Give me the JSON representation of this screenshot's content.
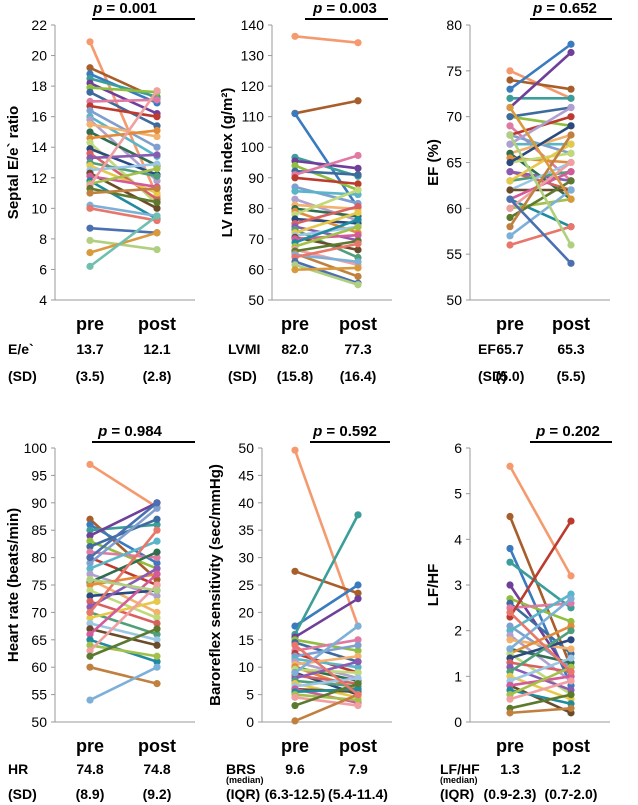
{
  "figure": {
    "description": "Six paired pre/post comparison plots"
  },
  "chart_data": [
    {
      "type": "line",
      "id": "ee",
      "ylabel": "Septal E/e` ratio",
      "ylim": [
        4,
        22
      ],
      "yticks": [
        4,
        6,
        8,
        10,
        12,
        14,
        16,
        18,
        20,
        22
      ],
      "p_value": "p = 0.001",
      "categories": [
        "pre",
        "post"
      ],
      "stats": [
        {
          "label": "E/e`",
          "sub": "",
          "pre": "13.7",
          "post": "12.1"
        },
        {
          "label": "(SD)",
          "sub": "",
          "pre": "(3.5)",
          "post": "(2.8)"
        }
      ],
      "pairs": [
        [
          20.9,
          10.8
        ],
        [
          19.2,
          17.2
        ],
        [
          18.8,
          16.9
        ],
        [
          18.5,
          17.3
        ],
        [
          18.2,
          16.2
        ],
        [
          17.9,
          17.6
        ],
        [
          17.6,
          15.4
        ],
        [
          17.0,
          17.1
        ],
        [
          16.7,
          16.0
        ],
        [
          16.4,
          14.0
        ],
        [
          16.0,
          13.4
        ],
        [
          15.8,
          11.8
        ],
        [
          15.5,
          14.7
        ],
        [
          15.0,
          12.8
        ],
        [
          14.6,
          15.1
        ],
        [
          14.3,
          10.3
        ],
        [
          13.9,
          12.2
        ],
        [
          13.6,
          10.6
        ],
        [
          13.3,
          13.5
        ],
        [
          13.0,
          12.1
        ],
        [
          12.8,
          11.0
        ],
        [
          12.5,
          12.9
        ],
        [
          12.3,
          10.0
        ],
        [
          12.1,
          11.4
        ],
        [
          11.8,
          9.3
        ],
        [
          11.6,
          12.6
        ],
        [
          11.5,
          17.7
        ],
        [
          11.3,
          10.4
        ],
        [
          11.0,
          11.3
        ],
        [
          10.2,
          9.5
        ],
        [
          10.0,
          9.2
        ],
        [
          8.7,
          8.4
        ],
        [
          7.9,
          7.3
        ],
        [
          7.1,
          8.4
        ],
        [
          6.2,
          9.5
        ]
      ]
    },
    {
      "type": "line",
      "id": "lvmi",
      "ylabel": "LV mass index (g/m²)",
      "ylim": [
        50,
        140
      ],
      "yticks": [
        50,
        60,
        70,
        80,
        90,
        100,
        110,
        120,
        130,
        140
      ],
      "p_value": "p = 0.003",
      "categories": [
        "pre",
        "post"
      ],
      "stats": [
        {
          "label": "LVMI",
          "sub": "",
          "pre": "82.0",
          "post": "77.3"
        },
        {
          "label": "(SD)",
          "sub": "",
          "pre": "(15.8)",
          "post": "(16.4)"
        }
      ],
      "pairs": [
        [
          136.3,
          134.2
        ],
        [
          111.1,
          115.2
        ],
        [
          111.0,
          80.2
        ],
        [
          96.7,
          90.5
        ],
        [
          95.5,
          93.1
        ],
        [
          94.0,
          86.0
        ],
        [
          92.2,
          91.0
        ],
        [
          91.0,
          97.3
        ],
        [
          90.0,
          88.0
        ],
        [
          87.0,
          81.6
        ],
        [
          85.6,
          84.5
        ],
        [
          83.0,
          76.0
        ],
        [
          81.1,
          79.8
        ],
        [
          79.9,
          77.4
        ],
        [
          79.0,
          72.0
        ],
        [
          78.0,
          86.0
        ],
        [
          76.5,
          75.1
        ],
        [
          75.0,
          80.6
        ],
        [
          74.0,
          69.5
        ],
        [
          73.0,
          63.9
        ],
        [
          72.0,
          78.6
        ],
        [
          71.0,
          74.0
        ],
        [
          70.5,
          66.4
        ],
        [
          70.0,
          71.2
        ],
        [
          68.8,
          76.3
        ],
        [
          67.5,
          73.9
        ],
        [
          66.5,
          61.5
        ],
        [
          66.0,
          69.3
        ],
        [
          65.2,
          57.7
        ],
        [
          64.8,
          62.5
        ],
        [
          64.0,
          68.4
        ],
        [
          62.6,
          55.5
        ],
        [
          61.5,
          55.0
        ],
        [
          59.9,
          60.5
        ]
      ]
    },
    {
      "type": "line",
      "id": "ef",
      "ylabel": "EF (%)",
      "ylim": [
        50,
        80
      ],
      "yticks": [
        50,
        55,
        60,
        65,
        70,
        75,
        80
      ],
      "p_value": "p = 0.652",
      "categories": [
        "pre",
        "post"
      ],
      "stats": [
        {
          "label": "EF",
          "sub": "",
          "pre": "65.7",
          "post": "65.3"
        },
        {
          "label": "(SD)",
          "sub": "",
          "pre": "(5.0)",
          "post": "(5.5)"
        }
      ],
      "pairs": [
        [
          75.0,
          72.0
        ],
        [
          74.0,
          73.0
        ],
        [
          73.0,
          77.9
        ],
        [
          72.0,
          72.0
        ],
        [
          71.0,
          77.0
        ],
        [
          70.0,
          69.0
        ],
        [
          70.0,
          71.0
        ],
        [
          69.0,
          63.0
        ],
        [
          68.0,
          70.0
        ],
        [
          68.0,
          66.0
        ],
        [
          67.0,
          67.0
        ],
        [
          67.0,
          71.0
        ],
        [
          66.0,
          68.0
        ],
        [
          66.0,
          61.0
        ],
        [
          65.5,
          65.0
        ],
        [
          65.0,
          66.0
        ],
        [
          65.0,
          69.0
        ],
        [
          64.0,
          62.0
        ],
        [
          64.0,
          63.0
        ],
        [
          63.0,
          64.0
        ],
        [
          63.0,
          67.0
        ],
        [
          62.0,
          65.0
        ],
        [
          62.0,
          62.0
        ],
        [
          61.0,
          64.0
        ],
        [
          61.0,
          58.0
        ],
        [
          60.0,
          61.0
        ],
        [
          60.0,
          65.0
        ],
        [
          59.0,
          63.0
        ],
        [
          58.0,
          68.0
        ],
        [
          57.0,
          62.0
        ],
        [
          56.0,
          58.0
        ],
        [
          61.0,
          54.0
        ],
        [
          68.0,
          56.0
        ],
        [
          71.0,
          61.0
        ]
      ]
    },
    {
      "type": "line",
      "id": "hr",
      "ylabel": "Heart rate (beats/min)",
      "ylim": [
        50,
        100
      ],
      "yticks": [
        50,
        55,
        60,
        65,
        70,
        75,
        80,
        85,
        90,
        95,
        100
      ],
      "p_value": "p = 0.984",
      "categories": [
        "pre",
        "post"
      ],
      "stats": [
        {
          "label": "HR",
          "sub": "",
          "pre": "74.8",
          "post": "74.8"
        },
        {
          "label": "(SD)",
          "sub": "",
          "pre": "(8.9)",
          "post": "(9.2)"
        }
      ],
      "pairs": [
        [
          97.0,
          89.2
        ],
        [
          87.0,
          76.0
        ],
        [
          86.0,
          79.0
        ],
        [
          85.0,
          86.0
        ],
        [
          84.0,
          90.0
        ],
        [
          83.0,
          78.0
        ],
        [
          82.0,
          87.0
        ],
        [
          81.0,
          80.0
        ],
        [
          80.0,
          75.0
        ],
        [
          79.0,
          89.0
        ],
        [
          78.0,
          83.0
        ],
        [
          77.0,
          73.0
        ],
        [
          76.0,
          70.0
        ],
        [
          75.5,
          81.0
        ],
        [
          75.0,
          77.0
        ],
        [
          74.0,
          69.0
        ],
        [
          73.0,
          74.0
        ],
        [
          72.0,
          68.0
        ],
        [
          71.0,
          78.0
        ],
        [
          70.0,
          66.0
        ],
        [
          69.0,
          72.0
        ],
        [
          68.0,
          65.0
        ],
        [
          67.0,
          64.0
        ],
        [
          66.0,
          77.0
        ],
        [
          65.0,
          61.0
        ],
        [
          64.0,
          62.0
        ],
        [
          63.0,
          75.0
        ],
        [
          62.0,
          67.0
        ],
        [
          60.0,
          57.0
        ],
        [
          54.0,
          60.0
        ],
        [
          70.0,
          85.0
        ],
        [
          80.0,
          90.0
        ],
        [
          76.0,
          74.0
        ]
      ]
    },
    {
      "type": "line",
      "id": "brs",
      "ylabel": "Baroreflex sensitivity (sec/mmHg)",
      "ylim": [
        0,
        50
      ],
      "yticks": [
        0,
        5,
        10,
        15,
        20,
        25,
        30,
        35,
        40,
        45,
        50
      ],
      "p_value": "p = 0.592",
      "categories": [
        "pre",
        "post"
      ],
      "stats": [
        {
          "label": "BRS",
          "sub": "(median)",
          "pre": "9.6",
          "post": "7.9"
        },
        {
          "label": "(IQR)",
          "sub": "",
          "pre": "(6.3-12.5)",
          "post": "(5.4-11.4)"
        }
      ],
      "pairs": [
        [
          49.6,
          17.5
        ],
        [
          27.5,
          23.5
        ],
        [
          17.5,
          25.0
        ],
        [
          16.0,
          37.8
        ],
        [
          15.5,
          22.5
        ],
        [
          15.0,
          13.0
        ],
        [
          14.5,
          11.0
        ],
        [
          13.0,
          15.0
        ],
        [
          12.5,
          9.0
        ],
        [
          12.0,
          14.0
        ],
        [
          11.5,
          10.0
        ],
        [
          11.0,
          8.0
        ],
        [
          10.5,
          12.0
        ],
        [
          10.0,
          7.5
        ],
        [
          10.0,
          6.0
        ],
        [
          9.6,
          9.0
        ],
        [
          9.0,
          5.0
        ],
        [
          8.5,
          7.0
        ],
        [
          8.0,
          11.0
        ],
        [
          7.5,
          6.5
        ],
        [
          7.0,
          4.5
        ],
        [
          6.5,
          8.0
        ],
        [
          6.0,
          5.5
        ],
        [
          6.0,
          3.5
        ],
        [
          5.5,
          6.0
        ],
        [
          5.0,
          4.0
        ],
        [
          4.5,
          3.0
        ],
        [
          3.0,
          7.0
        ],
        [
          0.2,
          5.0
        ],
        [
          9.0,
          17.5
        ],
        [
          14.0,
          5.0
        ]
      ]
    },
    {
      "type": "line",
      "id": "lfhf",
      "ylabel": "LF/HF",
      "ylim": [
        0,
        6
      ],
      "yticks": [
        0,
        1,
        2,
        3,
        4,
        5,
        6
      ],
      "p_value": "p = 0.202",
      "categories": [
        "pre",
        "post"
      ],
      "stats": [
        {
          "label": "LF/HF",
          "sub": "(median)",
          "pre": "1.3",
          "post": "1.2"
        },
        {
          "label": "(IQR)",
          "sub": "",
          "pre": "(0.9-2.3)",
          "post": "(0.7-2.0)"
        }
      ],
      "pairs": [
        [
          5.6,
          3.2
        ],
        [
          4.5,
          1.2
        ],
        [
          3.8,
          0.8
        ],
        [
          3.5,
          2.5
        ],
        [
          3.0,
          1.0
        ],
        [
          2.7,
          2.2
        ],
        [
          2.6,
          1.5
        ],
        [
          2.5,
          2.6
        ],
        [
          2.3,
          4.4
        ],
        [
          2.1,
          1.2
        ],
        [
          2.0,
          2.8
        ],
        [
          1.9,
          0.9
        ],
        [
          1.8,
          1.6
        ],
        [
          1.6,
          1.3
        ],
        [
          1.5,
          2.1
        ],
        [
          1.5,
          0.6
        ],
        [
          1.4,
          1.8
        ],
        [
          1.3,
          1.1
        ],
        [
          1.2,
          0.7
        ],
        [
          1.1,
          2.0
        ],
        [
          1.0,
          0.5
        ],
        [
          0.9,
          1.4
        ],
        [
          0.8,
          0.2
        ],
        [
          0.8,
          1.0
        ],
        [
          0.7,
          0.4
        ],
        [
          0.6,
          1.2
        ],
        [
          0.5,
          0.9
        ],
        [
          0.3,
          0.6
        ],
        [
          0.2,
          0.3
        ],
        [
          1.6,
          2.7
        ],
        [
          2.4,
          1.1
        ]
      ]
    }
  ],
  "colors": [
    "#f59a6e",
    "#a85e2a",
    "#3a7bbf",
    "#3c9e9a",
    "#6f3f9a",
    "#8fbf3e",
    "#3e6b9e",
    "#e07aa3",
    "#bb3b2f",
    "#7f9fcf",
    "#5ab5c9",
    "#b0a0d0",
    "#f2b26b",
    "#2f6f4f",
    "#e38b3a",
    "#c0d97a",
    "#2b4a80",
    "#d86060",
    "#8a5bb3",
    "#4fa07a",
    "#e6c84a",
    "#9cc6e6",
    "#6a4c2a",
    "#d45a9a",
    "#1f8ba0",
    "#a3c14a",
    "#f0a0a0",
    "#5c7a2e",
    "#c08040",
    "#7db0d8",
    "#e8766a",
    "#4b6fb0",
    "#b0d080",
    "#d99a3e",
    "#6fc0b0"
  ]
}
